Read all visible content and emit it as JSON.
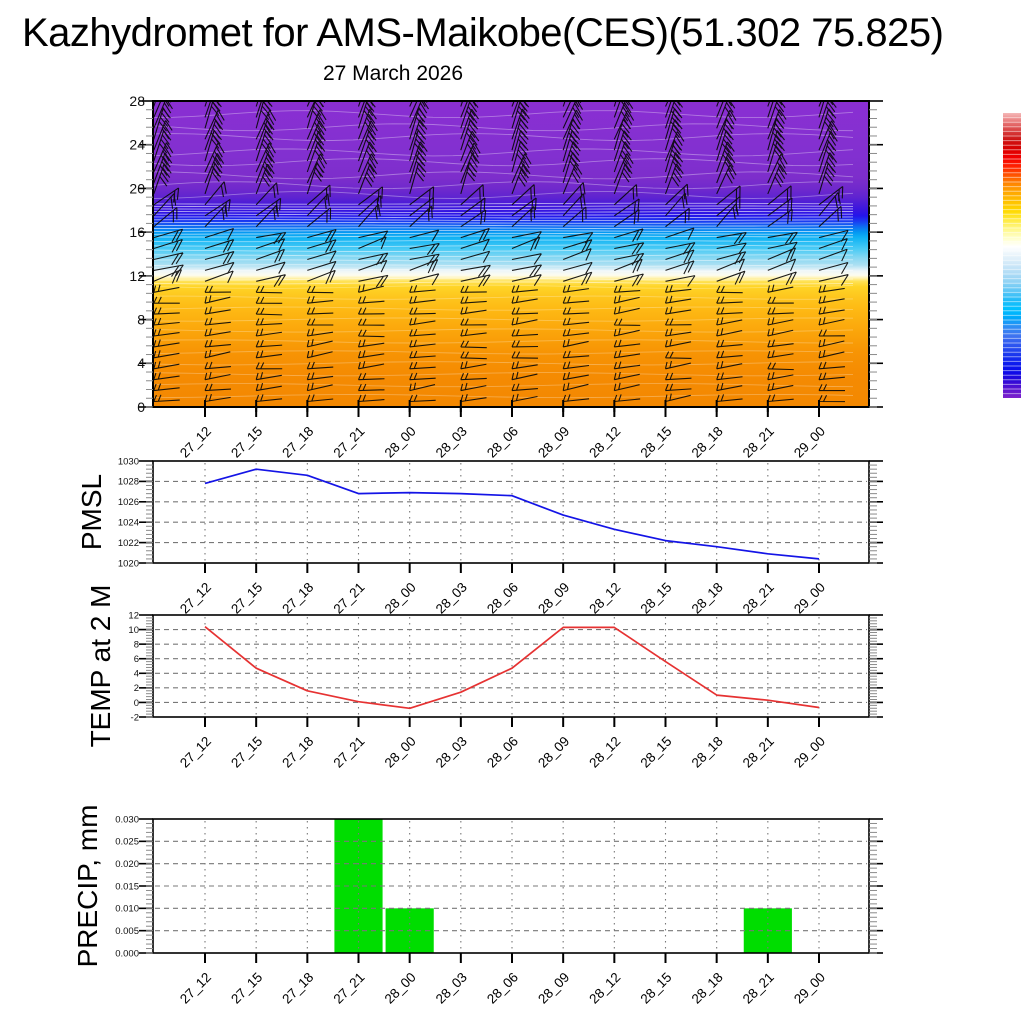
{
  "page": {
    "title": "Kazhydromet for AMS-Maikobe(CES)(51.302 75.825)",
    "subtitle": "27 March 2026"
  },
  "x_categories": [
    "27_12",
    "27_15",
    "27_18",
    "27_21",
    "28_00",
    "28_03",
    "28_06",
    "28_09",
    "28_12",
    "28_15",
    "28_18",
    "28_21",
    "29_00"
  ],
  "chart_data": [
    {
      "id": "upper-air",
      "type": "heatmap",
      "title": "",
      "ylabel": "",
      "ylim": [
        0,
        28
      ],
      "yticks": [
        0,
        4,
        8,
        12,
        16,
        20,
        24,
        28
      ],
      "x_categories": [
        "27_12",
        "27_15",
        "27_18",
        "27_21",
        "28_00",
        "28_03",
        "28_06",
        "28_09",
        "28_12",
        "28_15",
        "28_18",
        "28_21",
        "29_00"
      ],
      "overlay": "wind barbs and thin white contour lines over a filled vertical cross-section",
      "fill_bands_level_color": [
        [
          0,
          "#f38801"
        ],
        [
          3,
          "#f58b02"
        ],
        [
          5,
          "#f79404"
        ],
        [
          7,
          "#fba60b"
        ],
        [
          9,
          "#feba14"
        ],
        [
          10,
          "#fec51d"
        ],
        [
          11,
          "#ffd426"
        ],
        [
          11.5,
          "#ffe255"
        ],
        [
          11.8,
          "#fff3b0"
        ],
        [
          12.05,
          "#fdfcef"
        ],
        [
          12.45,
          "#eef6f8"
        ],
        [
          13,
          "#abdff2"
        ],
        [
          13.6,
          "#8ad8f2"
        ],
        [
          14.5,
          "#48caf5"
        ],
        [
          15.5,
          "#0fb2f4"
        ],
        [
          16,
          "#0497f2"
        ],
        [
          16.5,
          "#0e6cf2"
        ],
        [
          17,
          "#1a3af2"
        ],
        [
          17.5,
          "#2414ea"
        ],
        [
          18,
          "#3715e0"
        ],
        [
          18.6,
          "#4a1cd8"
        ],
        [
          19.2,
          "#5f24d0"
        ],
        [
          20,
          "#7029cc"
        ],
        [
          21,
          "#7d2ecb"
        ],
        [
          23,
          "#8230d0"
        ],
        [
          28,
          "#8a2fd2"
        ]
      ],
      "colorbar_stops_top_to_bottom": [
        "#f5b8b8",
        "#e87878",
        "#d84040",
        "#cc1414",
        "#d80000",
        "#f20000",
        "#ff2200",
        "#ff5500",
        "#ff8800",
        "#ffaa00",
        "#ffc300",
        "#ffd900",
        "#ffea40",
        "#fff788",
        "#ffffc8",
        "#ffffff",
        "#e8f4fb",
        "#cfe8f8",
        "#b0dcf6",
        "#8fd2f4",
        "#5cc6f6",
        "#22bcf8",
        "#00c0ff",
        "#00a8fa",
        "#2f8df4",
        "#3f74f0",
        "#2e57f0",
        "#1d3bee",
        "#0d1fee",
        "#0b0bea",
        "#2a08d8",
        "#5a14d0",
        "#7e22cc"
      ]
    },
    {
      "id": "pmsl",
      "type": "line",
      "ylabel": "PMSL",
      "ylim": [
        1020,
        1030
      ],
      "ytick_step": 2,
      "ytick_decimals": 0,
      "grid": true,
      "line_color": "#1414e6",
      "x_categories": [
        "27_12",
        "27_15",
        "27_18",
        "27_21",
        "28_00",
        "28_03",
        "28_06",
        "28_09",
        "28_12",
        "28_15",
        "28_18",
        "28_21",
        "29_00"
      ],
      "values": [
        1027.8,
        1029.2,
        1028.6,
        1026.8,
        1026.9,
        1026.8,
        1026.6,
        1024.7,
        1023.3,
        1022.2,
        1021.6,
        1020.9,
        1020.4
      ]
    },
    {
      "id": "temp-2m",
      "type": "line",
      "ylabel": "TEMP at 2 M",
      "ylim": [
        -2,
        12
      ],
      "ytick_step": 2,
      "ytick_decimals": 0,
      "grid": true,
      "line_color": "#e63232",
      "x_categories": [
        "27_12",
        "27_15",
        "27_18",
        "27_21",
        "28_00",
        "28_03",
        "28_06",
        "28_09",
        "28_12",
        "28_15",
        "28_18",
        "28_21",
        "29_00"
      ],
      "values": [
        10.4,
        4.7,
        1.6,
        0.1,
        -0.8,
        1.4,
        4.7,
        10.3,
        10.3,
        5.6,
        1.0,
        0.3,
        -0.7
      ]
    },
    {
      "id": "precip",
      "type": "bar",
      "ylabel": "PRECIP, mm",
      "ylim": [
        0,
        0.03
      ],
      "ytick_step": 0.005,
      "ytick_decimals": 3,
      "grid": true,
      "bar_color": "#00dd00",
      "x_categories": [
        "27_12",
        "27_15",
        "27_18",
        "27_21",
        "28_00",
        "28_03",
        "28_06",
        "28_09",
        "28_12",
        "28_15",
        "28_18",
        "28_21",
        "29_00"
      ],
      "values": [
        0,
        0,
        0,
        0.03,
        0.01,
        0,
        0,
        0,
        0,
        0,
        0,
        0.01,
        0
      ]
    }
  ]
}
